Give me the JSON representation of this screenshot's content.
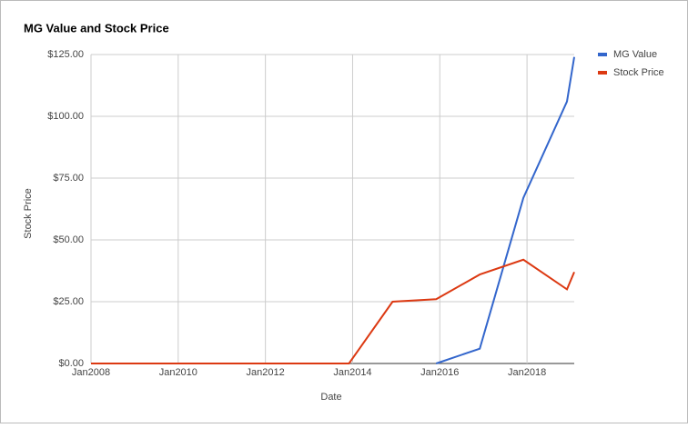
{
  "chart_data": {
    "type": "line",
    "title": "MG Value and Stock Price",
    "x_label": "Date",
    "y_label": "Stock Price",
    "x": [
      "2008-01",
      "2013-12",
      "2014-12",
      "2015-12",
      "2016-12",
      "2017-12",
      "2018-12",
      "2019-02"
    ],
    "series": [
      {
        "name": "MG Value",
        "color": "#3366cc",
        "values": [
          null,
          null,
          null,
          0,
          6,
          67,
          106,
          124
        ]
      },
      {
        "name": "Stock Price",
        "color": "#dc3912",
        "values": [
          0,
          0,
          25,
          26,
          36,
          42,
          30,
          37
        ]
      }
    ],
    "xlim": [
      "2008-01",
      "2019-02"
    ],
    "xticks": [
      {
        "value": "2008-01",
        "label": "Jan2008"
      },
      {
        "value": "2010-01",
        "label": "Jan2010"
      },
      {
        "value": "2012-01",
        "label": "Jan2012"
      },
      {
        "value": "2014-01",
        "label": "Jan2014"
      },
      {
        "value": "2016-01",
        "label": "Jan2016"
      },
      {
        "value": "2018-01",
        "label": "Jan2018"
      }
    ],
    "ylim": [
      0,
      125
    ],
    "yticks": [
      {
        "value": 0,
        "label": "$0.00"
      },
      {
        "value": 25,
        "label": "$25.00"
      },
      {
        "value": 50,
        "label": "$50.00"
      },
      {
        "value": 75,
        "label": "$75.00"
      },
      {
        "value": 100,
        "label": "$100.00"
      },
      {
        "value": 125,
        "label": "$125.00"
      }
    ],
    "grid": true,
    "legend": "right"
  }
}
